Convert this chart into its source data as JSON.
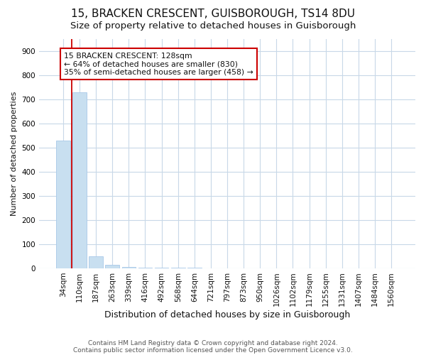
{
  "title1": "15, BRACKEN CRESCENT, GUISBOROUGH, TS14 8DU",
  "title2": "Size of property relative to detached houses in Guisborough",
  "xlabel": "Distribution of detached houses by size in Guisborough",
  "ylabel": "Number of detached properties",
  "categories": [
    "34sqm",
    "110sqm",
    "187sqm",
    "263sqm",
    "339sqm",
    "416sqm",
    "492sqm",
    "568sqm",
    "644sqm",
    "721sqm",
    "797sqm",
    "873sqm",
    "950sqm",
    "1026sqm",
    "1102sqm",
    "1179sqm",
    "1255sqm",
    "1331sqm",
    "1407sqm",
    "1484sqm",
    "1560sqm"
  ],
  "values": [
    530,
    730,
    50,
    15,
    5,
    3,
    2,
    1,
    1,
    0,
    0,
    0,
    0,
    0,
    0,
    0,
    0,
    0,
    0,
    0,
    0
  ],
  "bar_color": "#c8dff0",
  "bar_edgecolor": "#a8c8e8",
  "annotation_line1": "15 BRACKEN CRESCENT: 128sqm",
  "annotation_line2": "← 64% of detached houses are smaller (830)",
  "annotation_line3": "35% of semi-detached houses are larger (458) →",
  "annotation_box_edgecolor": "#cc0000",
  "annotation_box_facecolor": "#ffffff",
  "red_line_x": 0.5,
  "ylim": [
    0,
    950
  ],
  "yticks": [
    0,
    100,
    200,
    300,
    400,
    500,
    600,
    700,
    800,
    900
  ],
  "footer1": "Contains HM Land Registry data © Crown copyright and database right 2024.",
  "footer2": "Contains public sector information licensed under the Open Government Licence v3.0.",
  "background_color": "#ffffff",
  "plot_background_color": "#ffffff",
  "title1_fontsize": 11,
  "title2_fontsize": 9.5,
  "ylabel_fontsize": 8,
  "xlabel_fontsize": 9,
  "tick_fontsize": 7.5,
  "footer_fontsize": 6.5,
  "grid_color": "#c8d8e8"
}
